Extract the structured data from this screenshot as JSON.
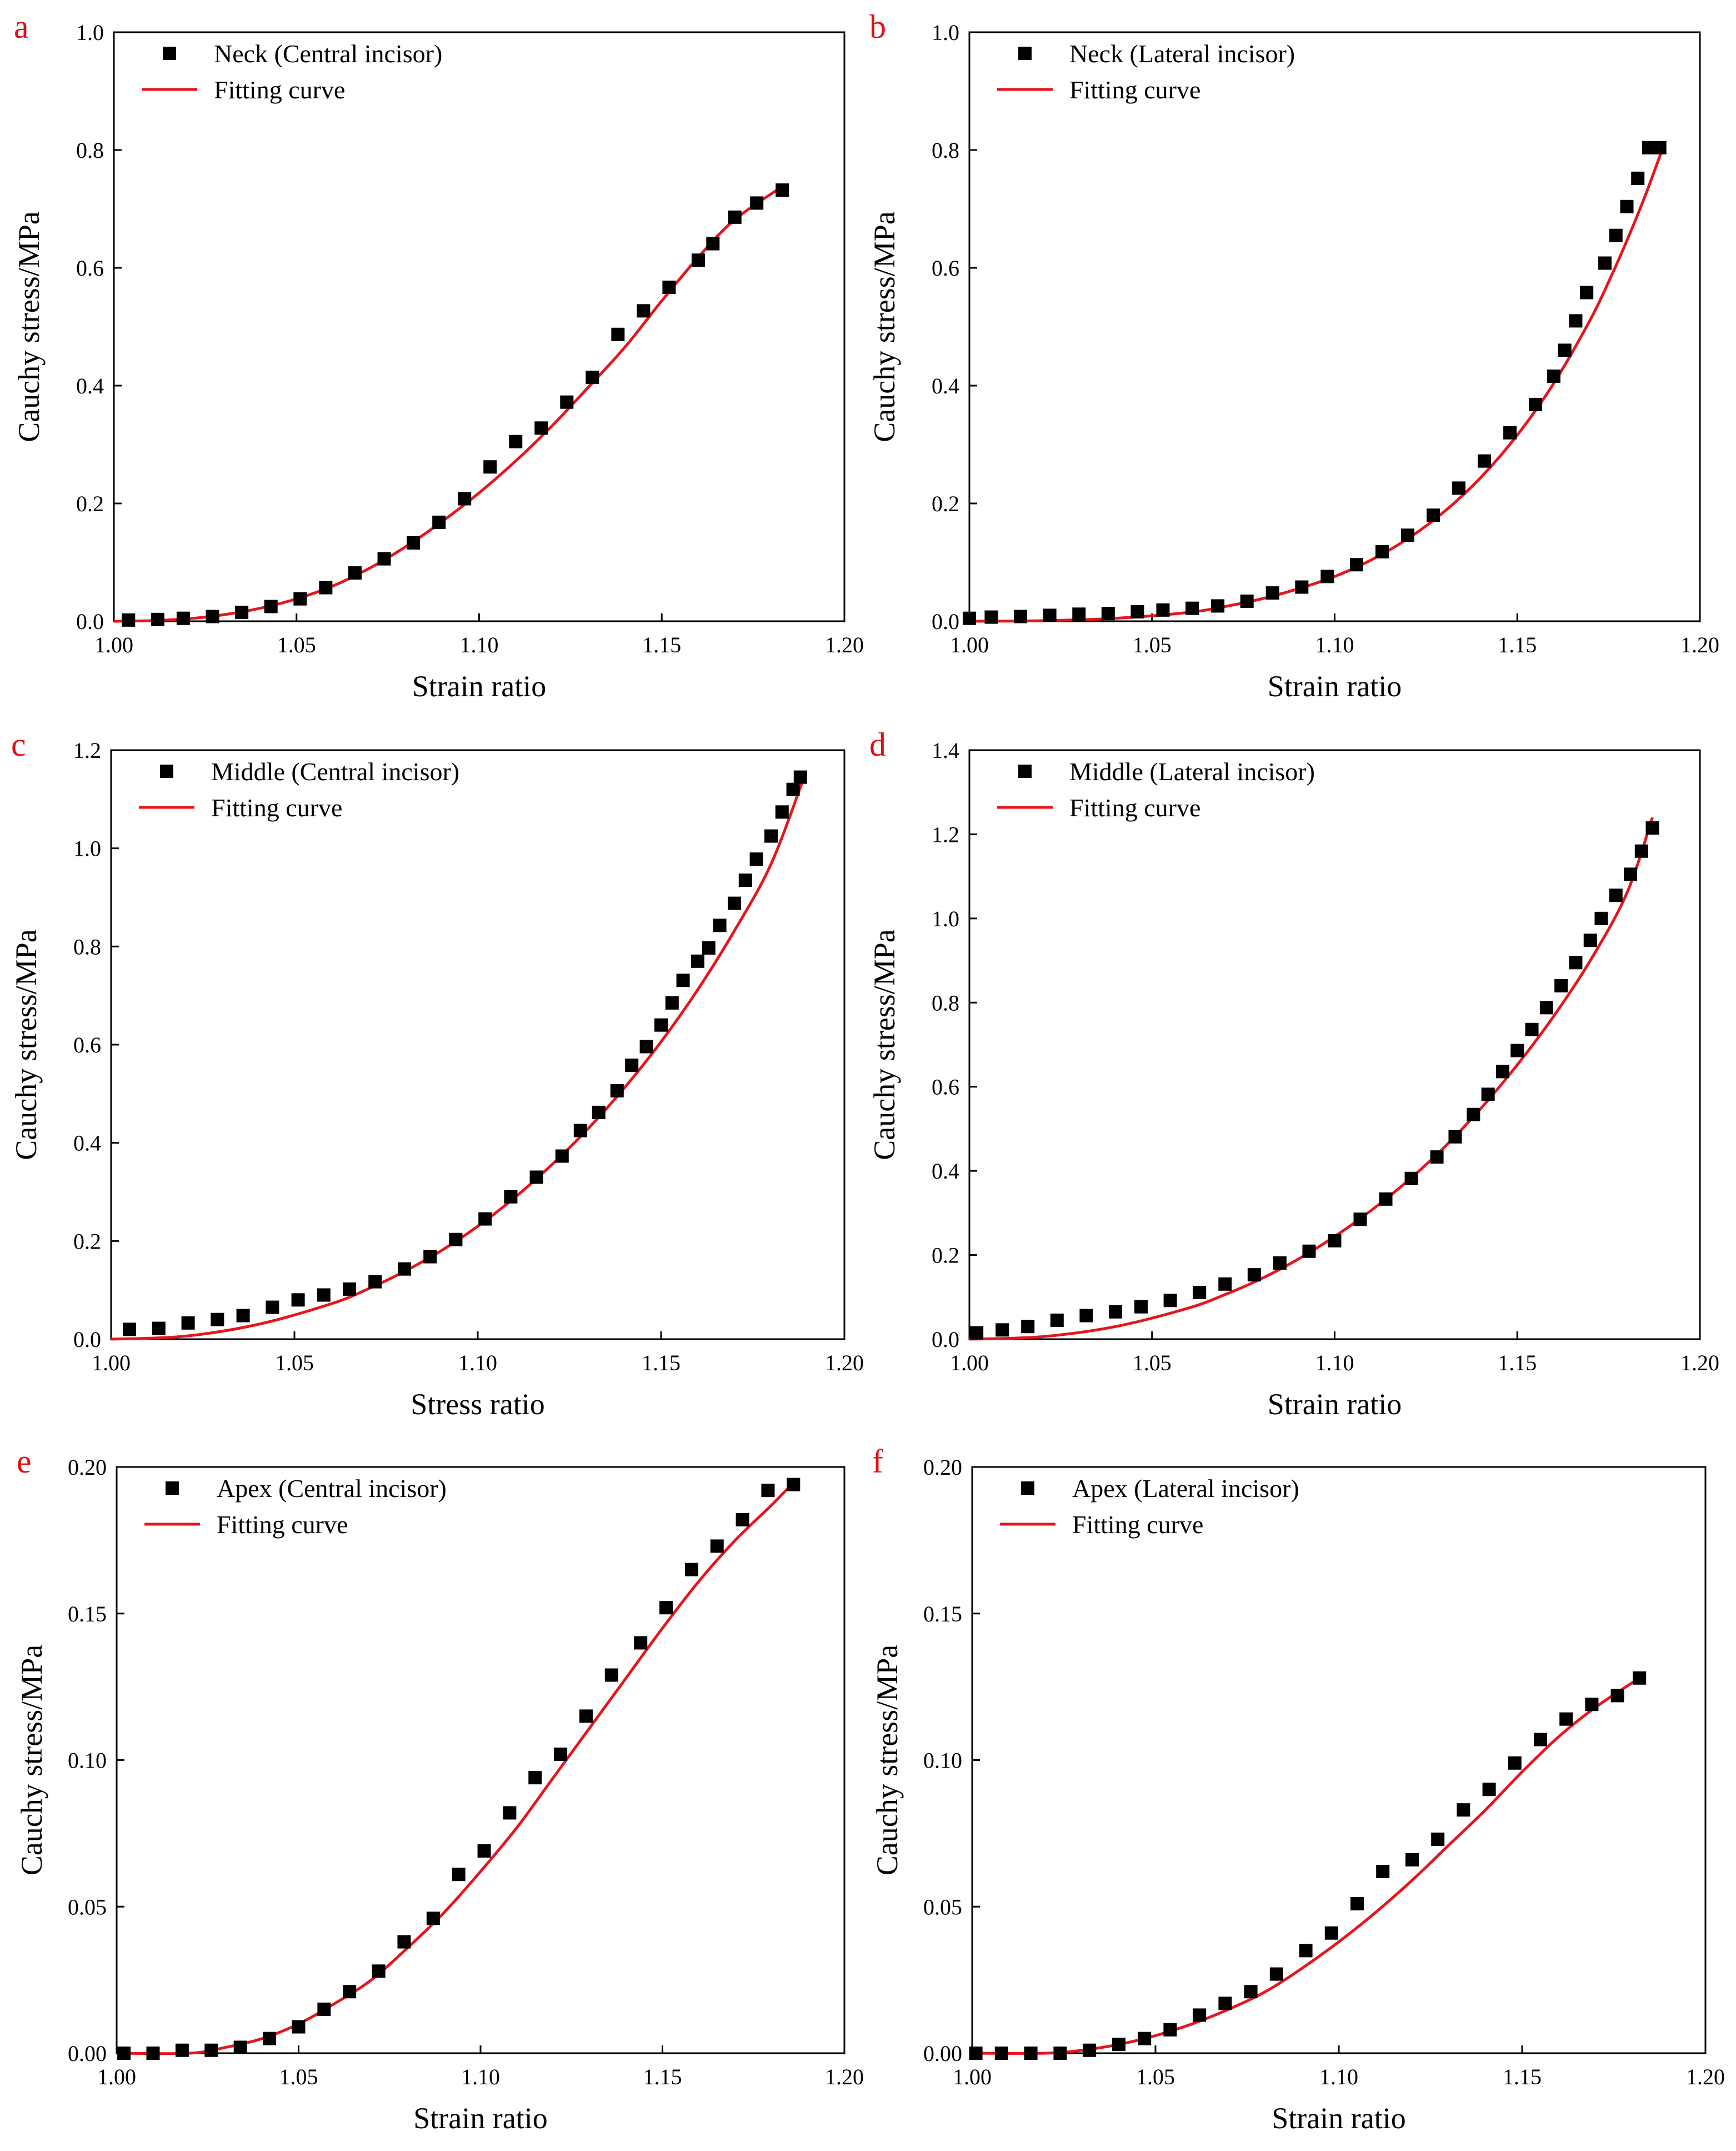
{
  "chart_data": [
    {
      "type": "scatter",
      "panel": "a",
      "xlabel": "Strain ratio",
      "ylabel": "Cauchy stress/MPa",
      "xlim": [
        1.0,
        1.2
      ],
      "ylim": [
        0.0,
        1.0
      ],
      "xticks": [
        "1.00",
        "1.05",
        "1.10",
        "1.15",
        "1.20"
      ],
      "yticks": [
        "0.0",
        "0.2",
        "0.4",
        "0.6",
        "0.8",
        "1.0"
      ],
      "legend_position": "top-left",
      "series": [
        {
          "name": "Neck (Central incisor)",
          "kind": "markers",
          "x": [
            1.004,
            1.012,
            1.019,
            1.027,
            1.035,
            1.043,
            1.051,
            1.058,
            1.066,
            1.074,
            1.082,
            1.089,
            1.096,
            1.103,
            1.11,
            1.117,
            1.124,
            1.131,
            1.138,
            1.145,
            1.152,
            1.16,
            1.164,
            1.17,
            1.176,
            1.183
          ],
          "y": [
            0.002,
            0.003,
            0.005,
            0.008,
            0.015,
            0.025,
            0.038,
            0.057,
            0.082,
            0.106,
            0.133,
            0.168,
            0.208,
            0.262,
            0.305,
            0.328,
            0.372,
            0.414,
            0.487,
            0.527,
            0.567,
            0.613,
            0.641,
            0.686,
            0.71,
            0.732
          ]
        },
        {
          "name": "Fitting curve",
          "kind": "line",
          "x": [
            1.0,
            1.01,
            1.02,
            1.03,
            1.04,
            1.05,
            1.06,
            1.07,
            1.08,
            1.09,
            1.1,
            1.11,
            1.12,
            1.13,
            1.14,
            1.15,
            1.16,
            1.17,
            1.183
          ],
          "y": [
            0.0,
            0.001,
            0.004,
            0.011,
            0.022,
            0.038,
            0.06,
            0.09,
            0.127,
            0.17,
            0.218,
            0.272,
            0.332,
            0.398,
            0.466,
            0.544,
            0.618,
            0.682,
            0.738
          ]
        }
      ]
    },
    {
      "type": "scatter",
      "panel": "b",
      "xlabel": "Strain ratio",
      "ylabel": "Cauchy stress/MPa",
      "xlim": [
        1.0,
        1.2
      ],
      "ylim": [
        0.0,
        1.0
      ],
      "xticks": [
        "1.00",
        "1.05",
        "1.10",
        "1.15",
        "1.20"
      ],
      "yticks": [
        "0.0",
        "0.2",
        "0.4",
        "0.6",
        "0.8",
        "1.0"
      ],
      "legend_position": "top-left",
      "series": [
        {
          "name": "Neck (Lateral incisor)",
          "kind": "markers",
          "x": [
            1.0,
            1.006,
            1.014,
            1.022,
            1.03,
            1.038,
            1.046,
            1.053,
            1.061,
            1.068,
            1.076,
            1.083,
            1.091,
            1.098,
            1.106,
            1.113,
            1.12,
            1.127,
            1.134,
            1.141,
            1.148,
            1.155,
            1.16,
            1.163,
            1.166,
            1.169,
            1.174,
            1.177,
            1.18,
            1.183,
            1.186,
            1.189
          ],
          "y": [
            0.005,
            0.007,
            0.008,
            0.01,
            0.012,
            0.013,
            0.016,
            0.019,
            0.022,
            0.026,
            0.034,
            0.048,
            0.058,
            0.076,
            0.096,
            0.118,
            0.146,
            0.18,
            0.226,
            0.272,
            0.32,
            0.368,
            0.416,
            0.46,
            0.51,
            0.558,
            0.608,
            0.655,
            0.704,
            0.752,
            0.804,
            0.804
          ]
        },
        {
          "name": "Fitting curve",
          "kind": "line",
          "x": [
            1.0,
            1.02,
            1.04,
            1.06,
            1.07,
            1.08,
            1.09,
            1.1,
            1.11,
            1.12,
            1.13,
            1.14,
            1.15,
            1.16,
            1.17,
            1.175,
            1.18,
            1.185,
            1.19
          ],
          "y": [
            0.0,
            0.001,
            0.005,
            0.015,
            0.025,
            0.038,
            0.055,
            0.076,
            0.104,
            0.14,
            0.186,
            0.244,
            0.316,
            0.404,
            0.512,
            0.576,
            0.646,
            0.722,
            0.806
          ]
        }
      ]
    },
    {
      "type": "scatter",
      "panel": "c",
      "xlabel": "Stress ratio",
      "ylabel": "Cauchy stress/MPa",
      "xlim": [
        1.0,
        1.2
      ],
      "ylim": [
        0.0,
        1.2
      ],
      "xticks": [
        "1.00",
        "1.05",
        "1.10",
        "1.15",
        "1.20"
      ],
      "yticks": [
        "0.0",
        "0.2",
        "0.4",
        "0.6",
        "0.8",
        "1.0",
        "1.2"
      ],
      "legend_position": "top-left",
      "series": [
        {
          "name": "Middle (Central incisor)",
          "kind": "markers",
          "x": [
            1.005,
            1.013,
            1.021,
            1.029,
            1.036,
            1.044,
            1.051,
            1.058,
            1.065,
            1.072,
            1.08,
            1.087,
            1.094,
            1.102,
            1.109,
            1.116,
            1.123,
            1.128,
            1.133,
            1.138,
            1.142,
            1.146,
            1.15,
            1.153,
            1.156,
            1.16,
            1.163,
            1.166,
            1.17,
            1.173,
            1.176,
            1.18,
            1.183,
            1.186,
            1.188
          ],
          "y": [
            0.02,
            0.022,
            0.033,
            0.04,
            0.048,
            0.065,
            0.08,
            0.09,
            0.102,
            0.117,
            0.143,
            0.168,
            0.203,
            0.245,
            0.29,
            0.33,
            0.373,
            0.425,
            0.462,
            0.506,
            0.558,
            0.596,
            0.64,
            0.685,
            0.731,
            0.77,
            0.797,
            0.843,
            0.888,
            0.935,
            0.978,
            1.025,
            1.074,
            1.12,
            1.145
          ]
        },
        {
          "name": "Fitting curve",
          "kind": "line",
          "x": [
            1.0,
            1.02,
            1.04,
            1.06,
            1.07,
            1.08,
            1.09,
            1.1,
            1.11,
            1.12,
            1.13,
            1.14,
            1.15,
            1.16,
            1.17,
            1.18,
            1.189
          ],
          "y": [
            0.0,
            0.006,
            0.03,
            0.072,
            0.102,
            0.138,
            0.18,
            0.23,
            0.288,
            0.354,
            0.428,
            0.512,
            0.606,
            0.712,
            0.832,
            0.968,
            1.145
          ]
        }
      ]
    },
    {
      "type": "scatter",
      "panel": "d",
      "xlabel": "Strain ratio",
      "ylabel": "Cauchy stress/MPa",
      "xlim": [
        1.0,
        1.2
      ],
      "ylim": [
        0.0,
        1.4
      ],
      "xticks": [
        "1.00",
        "1.05",
        "1.10",
        "1.15",
        "1.20"
      ],
      "yticks": [
        "0.0",
        "0.2",
        "0.4",
        "0.6",
        "0.8",
        "1.0",
        "1.2",
        "1.4"
      ],
      "legend_position": "top-left",
      "series": [
        {
          "name": "Middle (Lateral incisor)",
          "kind": "markers",
          "x": [
            1.002,
            1.009,
            1.016,
            1.024,
            1.032,
            1.04,
            1.047,
            1.055,
            1.063,
            1.07,
            1.078,
            1.085,
            1.093,
            1.1,
            1.107,
            1.114,
            1.121,
            1.128,
            1.133,
            1.138,
            1.142,
            1.146,
            1.15,
            1.154,
            1.158,
            1.162,
            1.166,
            1.17,
            1.173,
            1.177,
            1.181,
            1.184,
            1.187
          ],
          "y": [
            0.015,
            0.022,
            0.03,
            0.045,
            0.056,
            0.065,
            0.077,
            0.092,
            0.111,
            0.131,
            0.153,
            0.181,
            0.209,
            0.234,
            0.285,
            0.333,
            0.382,
            0.433,
            0.481,
            0.534,
            0.582,
            0.636,
            0.686,
            0.736,
            0.788,
            0.84,
            0.895,
            0.948,
            1.0,
            1.055,
            1.105,
            1.16,
            1.215
          ]
        },
        {
          "name": "Fitting curve",
          "kind": "line",
          "x": [
            1.0,
            1.02,
            1.04,
            1.06,
            1.07,
            1.08,
            1.09,
            1.1,
            1.11,
            1.12,
            1.13,
            1.14,
            1.15,
            1.16,
            1.17,
            1.18,
            1.187
          ],
          "y": [
            0.0,
            0.006,
            0.03,
            0.074,
            0.106,
            0.144,
            0.19,
            0.244,
            0.306,
            0.376,
            0.456,
            0.548,
            0.652,
            0.768,
            0.9,
            1.06,
            1.24
          ]
        }
      ]
    },
    {
      "type": "scatter",
      "panel": "e",
      "xlabel": "Strain ratio",
      "ylabel": "Cauchy stress/MPa",
      "xlim": [
        1.0,
        1.2
      ],
      "ylim": [
        0.0,
        0.2
      ],
      "xticks": [
        "1.00",
        "1.05",
        "1.10",
        "1.15",
        "1.20"
      ],
      "yticks": [
        "0.00",
        "0.05",
        "0.10",
        "0.15",
        "0.20"
      ],
      "legend_position": "top-left",
      "series": [
        {
          "name": "Apex (Central incisor)",
          "kind": "markers",
          "x": [
            1.002,
            1.01,
            1.018,
            1.026,
            1.034,
            1.042,
            1.05,
            1.057,
            1.064,
            1.072,
            1.079,
            1.087,
            1.094,
            1.101,
            1.108,
            1.115,
            1.122,
            1.129,
            1.136,
            1.144,
            1.151,
            1.158,
            1.165,
            1.172,
            1.179,
            1.186
          ],
          "y": [
            0.0,
            0.0,
            0.001,
            0.001,
            0.002,
            0.005,
            0.009,
            0.015,
            0.021,
            0.028,
            0.038,
            0.046,
            0.061,
            0.069,
            0.082,
            0.094,
            0.102,
            0.115,
            0.129,
            0.14,
            0.152,
            0.165,
            0.173,
            0.182,
            0.192,
            0.194
          ]
        },
        {
          "name": "Fitting curve",
          "kind": "line",
          "x": [
            1.0,
            1.02,
            1.03,
            1.04,
            1.05,
            1.06,
            1.07,
            1.08,
            1.09,
            1.1,
            1.11,
            1.12,
            1.13,
            1.14,
            1.15,
            1.16,
            1.17,
            1.18,
            1.187
          ],
          "y": [
            0.0,
            0.0,
            0.002,
            0.005,
            0.01,
            0.017,
            0.025,
            0.036,
            0.048,
            0.062,
            0.077,
            0.094,
            0.111,
            0.128,
            0.145,
            0.161,
            0.175,
            0.187,
            0.196
          ]
        }
      ]
    },
    {
      "type": "scatter",
      "panel": "f",
      "xlabel": "Strain ratio",
      "ylabel": "Cauchy stress/MPa",
      "xlim": [
        1.0,
        1.2
      ],
      "ylim": [
        0.0,
        0.2
      ],
      "xticks": [
        "1.00",
        "1.05",
        "1.10",
        "1.15",
        "1.20"
      ],
      "yticks": [
        "0.00",
        "0.05",
        "0.10",
        "0.15",
        "0.20"
      ],
      "legend_position": "top-left",
      "series": [
        {
          "name": "Apex (Lateral incisor)",
          "kind": "markers",
          "x": [
            1.001,
            1.008,
            1.016,
            1.024,
            1.032,
            1.04,
            1.047,
            1.054,
            1.062,
            1.069,
            1.076,
            1.083,
            1.091,
            1.098,
            1.105,
            1.112,
            1.12,
            1.127,
            1.134,
            1.141,
            1.148,
            1.155,
            1.162,
            1.169,
            1.176,
            1.182
          ],
          "y": [
            0.0,
            0.0,
            0.0,
            0.0,
            0.001,
            0.003,
            0.005,
            0.008,
            0.013,
            0.017,
            0.021,
            0.027,
            0.035,
            0.041,
            0.051,
            0.062,
            0.066,
            0.073,
            0.083,
            0.09,
            0.099,
            0.107,
            0.114,
            0.119,
            0.122,
            0.128
          ]
        },
        {
          "name": "Fitting curve",
          "kind": "line",
          "x": [
            1.0,
            1.02,
            1.03,
            1.04,
            1.05,
            1.06,
            1.07,
            1.08,
            1.09,
            1.1,
            1.11,
            1.12,
            1.13,
            1.14,
            1.15,
            1.16,
            1.17,
            1.182
          ],
          "y": [
            0.0,
            0.0,
            0.001,
            0.003,
            0.006,
            0.01,
            0.015,
            0.021,
            0.029,
            0.038,
            0.048,
            0.059,
            0.071,
            0.083,
            0.096,
            0.108,
            0.118,
            0.128
          ]
        }
      ]
    }
  ]
}
